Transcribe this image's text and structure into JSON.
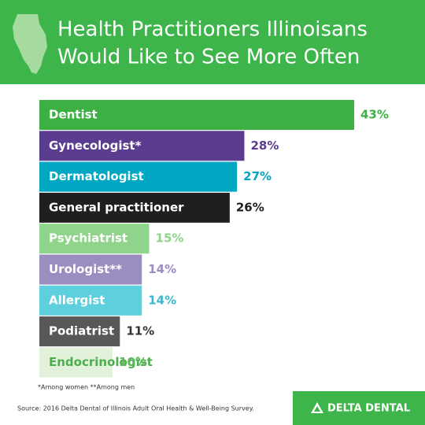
{
  "chart_data": {
    "type": "bar",
    "title_lines": [
      "Health Practitioners Illinoisans",
      "Would Like to See More Often"
    ],
    "categories": [
      "Dentist",
      "Gynecologist*",
      "Dermatologist",
      "General practitioner",
      "Psychiatrist",
      "Urologist**",
      "Allergist",
      "Podiatrist",
      "Endocrinologist"
    ],
    "values": [
      43,
      28,
      27,
      26,
      15,
      14,
      14,
      11,
      10
    ],
    "value_labels": [
      "43%",
      "28%",
      "27%",
      "26%",
      "15%",
      "14%",
      "14%",
      "11%",
      "10%"
    ],
    "colors": [
      "#3cb043",
      "#5b3d8f",
      "#00a6c2",
      "#1f1f1f",
      "#8fd48a",
      "#9b8dc0",
      "#5dcfdd",
      "#585858",
      "#e1f1da"
    ],
    "label_colors": [
      "#3cb043",
      "#5b3d8f",
      "#00a6c2",
      "#1f1f1f",
      "#8fd48a",
      "#9b8dc0",
      "#3cb7ca",
      "#333333",
      "#5cb85c"
    ],
    "category_text_colors": [
      "#ffffff",
      "#ffffff",
      "#ffffff",
      "#ffffff",
      "#ffffff",
      "#ffffff",
      "#ffffff",
      "#ffffff",
      "#4cae4c"
    ],
    "footnote": "*Among women  **Among men",
    "source": "Source: 2016 Delta Dental of Illinois Adult Oral Health & Well-Being Survey.",
    "logo": "DELTA DENTAL"
  }
}
